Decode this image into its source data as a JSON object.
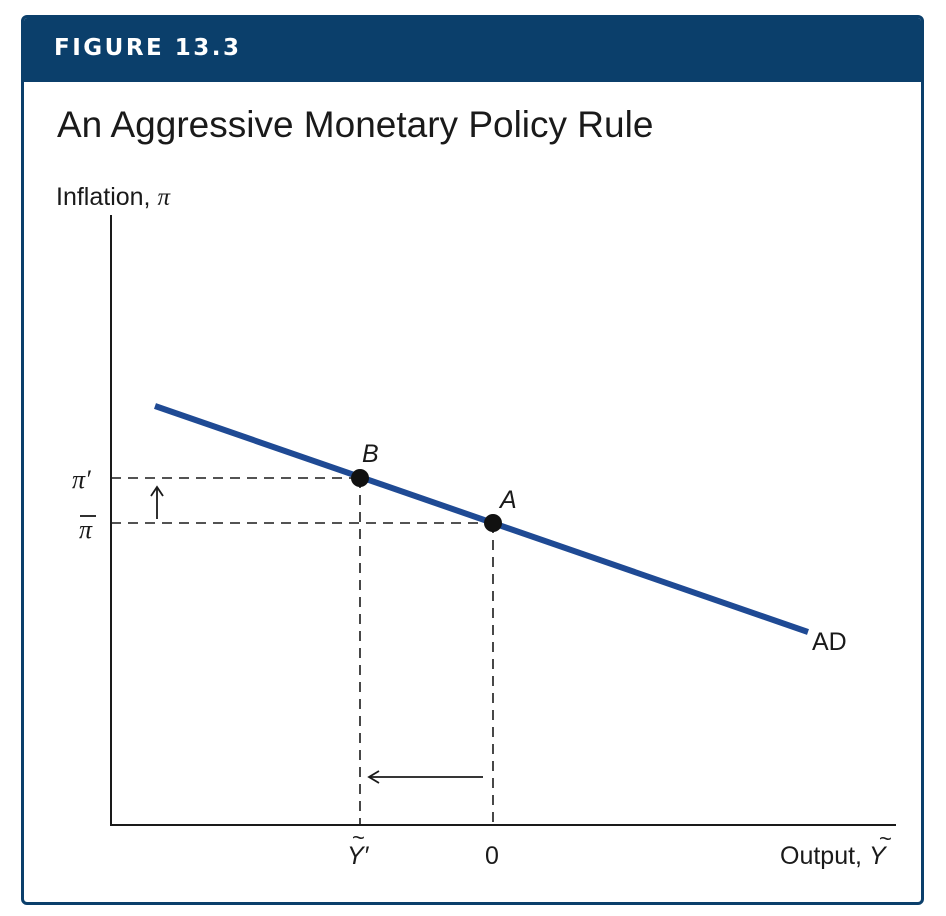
{
  "figure": {
    "label": "FIGURE 13.3",
    "title": "An Aggressive Monetary Policy Rule"
  },
  "axes": {
    "y_label": "Inflation, ",
    "y_symbol": "π",
    "x_label": "Output, ",
    "x_symbol": "Y",
    "x_symbol_accent": "~"
  },
  "ticks": {
    "y_pi_prime": "π′",
    "y_pi_bar": "π",
    "x_y_prime": "Y′",
    "x_y_prime_accent": "~",
    "x_zero": "0"
  },
  "points": {
    "b_label": "B",
    "a_label": "A"
  },
  "curve": {
    "label": "AD"
  },
  "colors": {
    "header": "#0b3f6b",
    "curve": "#1f4a94",
    "ink": "#1a1a1a"
  },
  "icons": {
    "up_arrow": "up-arrow-icon",
    "left_arrow": "left-arrow-icon"
  }
}
